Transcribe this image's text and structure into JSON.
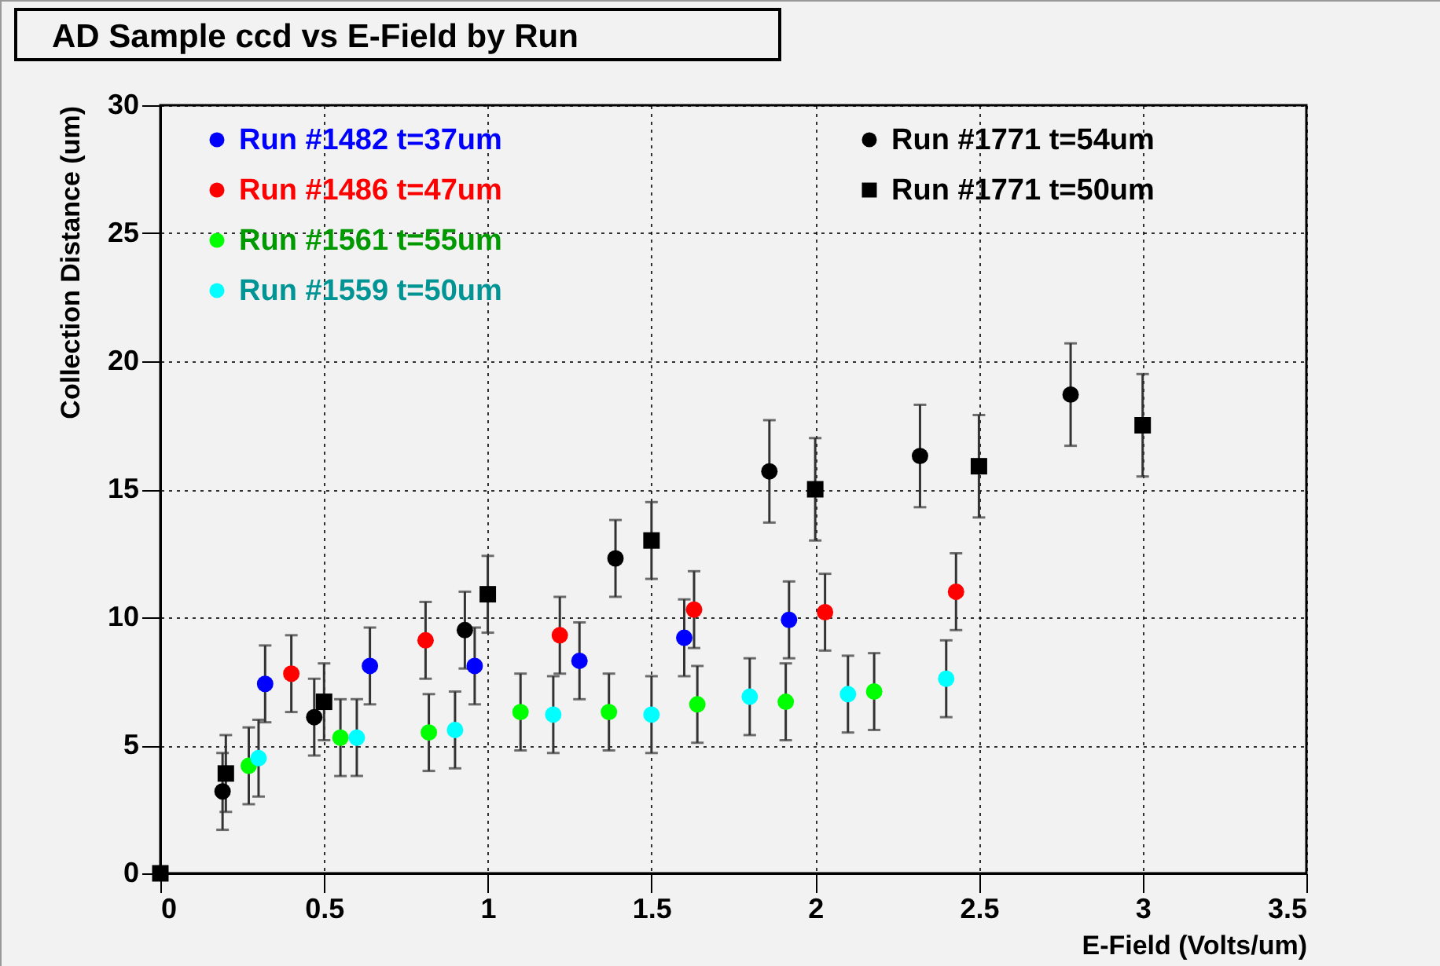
{
  "chart_data": {
    "type": "scatter",
    "title": "AD Sample ccd vs E-Field by Run",
    "xlabel": "E-Field (Volts/um)",
    "ylabel": "Collection Distance (um)",
    "xlim": [
      0,
      3.5
    ],
    "xticks": [
      0,
      0.5,
      1,
      1.5,
      2,
      2.5,
      3,
      3.5
    ],
    "ylim": [
      0,
      30
    ],
    "yticks": [
      0,
      5,
      10,
      15,
      20,
      25,
      30
    ],
    "grid": true,
    "legend": "top",
    "marker": "circle",
    "series": [
      {
        "name": "Run #1482 t=37um",
        "color": "#0000ff",
        "x": [
          0.32,
          0.64,
          0.96,
          1.28,
          1.6,
          1.92
        ],
        "values": [
          7.4,
          8.1,
          8.1,
          8.3,
          9.2,
          9.9
        ],
        "errors": [
          1.5,
          1.5,
          1.5,
          1.5,
          1.5,
          1.5
        ]
      },
      {
        "name": "Run #1486 t=47um",
        "color": "#ff0000",
        "x": [
          0.4,
          0.81,
          1.22,
          1.63,
          2.03,
          2.43
        ],
        "values": [
          7.8,
          9.1,
          9.3,
          10.3,
          10.2,
          11.0
        ],
        "errors": [
          1.5,
          1.5,
          1.5,
          1.5,
          1.5,
          1.5
        ]
      },
      {
        "name": "Run #1561 t=55um",
        "color": "#00ff00",
        "x": [
          0.27,
          0.55,
          0.82,
          1.1,
          1.37,
          1.64,
          1.91,
          2.18
        ],
        "values": [
          4.2,
          5.3,
          5.5,
          6.3,
          6.3,
          6.6,
          6.7,
          7.1
        ],
        "errors": [
          1.5,
          1.5,
          1.5,
          1.5,
          1.5,
          1.5,
          1.5,
          1.5
        ]
      },
      {
        "name": "Run #1559 t=50um",
        "color": "#00ffff",
        "x": [
          0.3,
          0.6,
          0.9,
          1.2,
          1.5,
          1.8,
          2.1,
          2.4
        ],
        "values": [
          4.5,
          5.3,
          5.6,
          6.2,
          6.2,
          6.9,
          7.0,
          7.6
        ],
        "errors": [
          1.5,
          1.5,
          1.5,
          1.5,
          1.5,
          1.5,
          1.5,
          1.5
        ]
      },
      {
        "name": "Run #1771 t=54um",
        "color": "#000000",
        "x": [
          0.19,
          0.47,
          0.93,
          1.39,
          1.86,
          2.32,
          2.78
        ],
        "values": [
          3.2,
          6.1,
          9.5,
          12.3,
          15.7,
          16.3,
          18.7
        ],
        "errors": [
          1.5,
          1.5,
          1.5,
          1.5,
          2,
          2,
          2
        ]
      },
      {
        "name": "Run #1771 t=50um",
        "color": "#000000",
        "marker": "square",
        "x": [
          0,
          0.2,
          0.5,
          1.0,
          1.5,
          2.0,
          2.5,
          3.0
        ],
        "values": [
          0,
          3.9,
          6.7,
          10.9,
          13.0,
          15.0,
          15.9,
          17.5
        ],
        "errors": [
          null,
          1.5,
          1.5,
          1.5,
          1.5,
          2,
          2,
          2
        ]
      }
    ]
  }
}
